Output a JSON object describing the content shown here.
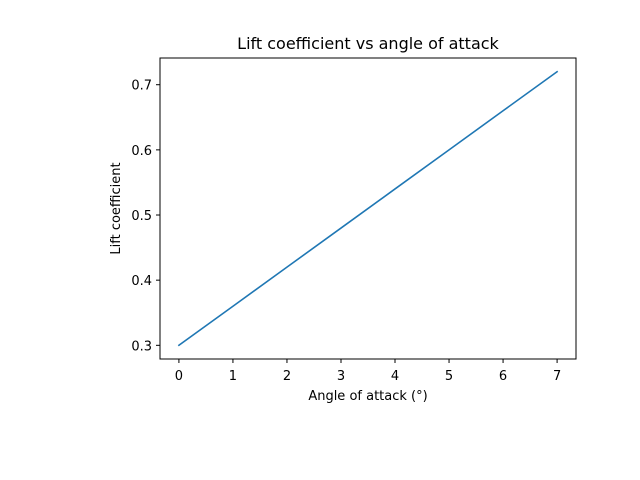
{
  "chart_data": {
    "type": "line",
    "title": "Lift coefficient vs angle of attack",
    "xlabel": "Angle of attack (°)",
    "ylabel": "Lift coefficient",
    "xlim": [
      -0.35,
      7.35
    ],
    "ylim": [
      0.279,
      0.741
    ],
    "xticks": [
      0,
      1,
      2,
      3,
      4,
      5,
      6,
      7
    ],
    "xtick_labels": [
      "0",
      "1",
      "2",
      "3",
      "4",
      "5",
      "6",
      "7"
    ],
    "yticks": [
      0.3,
      0.4,
      0.5,
      0.6,
      0.7
    ],
    "ytick_labels": [
      "0.3",
      "0.4",
      "0.5",
      "0.6",
      "0.7"
    ],
    "grid": false,
    "legend": "none",
    "series": [
      {
        "color": "#1f77b4",
        "x": [
          0,
          1,
          2,
          3,
          4,
          5,
          6,
          7
        ],
        "y": [
          0.3,
          0.36,
          0.42,
          0.48,
          0.54,
          0.6,
          0.66,
          0.72
        ]
      }
    ]
  }
}
